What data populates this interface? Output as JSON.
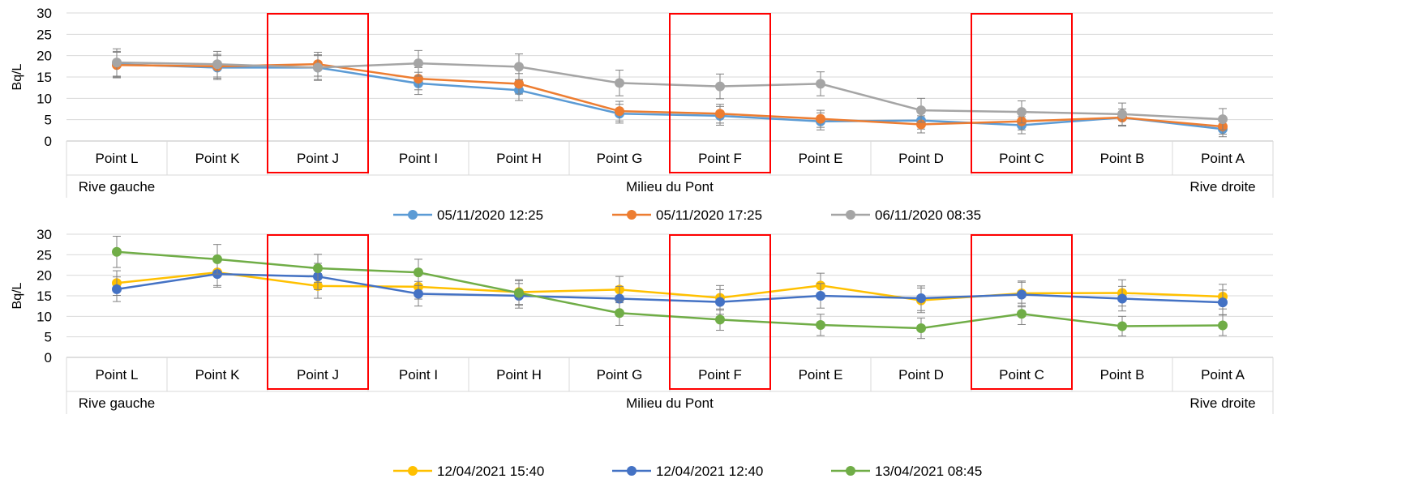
{
  "chart_data": [
    {
      "type": "line",
      "ylabel": "Bq/L",
      "ylim": [
        0,
        30
      ],
      "yticks": [
        0,
        5,
        10,
        15,
        20,
        25,
        30
      ],
      "categories": [
        "Point L",
        "Point K",
        "Point J",
        "Point I",
        "Point H",
        "Point G",
        "Point F",
        "Point E",
        "Point D",
        "Point C",
        "Point B",
        "Point A"
      ],
      "group_labels": [
        {
          "label": "Rive gauche",
          "index": 0
        },
        {
          "label": "Milieu du Pont",
          "index": 5.5
        },
        {
          "label": "Rive droite",
          "index": 11
        }
      ],
      "highlighted_categories": [
        "Point J",
        "Point F",
        "Point C"
      ],
      "highlight_color": "#ff0000",
      "grid": true,
      "legend_position": "bottom",
      "series": [
        {
          "name": "05/11/2020 12:25",
          "color": "#5b9bd5",
          "values": [
            18.0,
            17.2,
            17.2,
            13.5,
            11.9,
            6.4,
            5.9,
            4.6,
            4.8,
            3.7,
            5.5,
            2.8
          ],
          "errors": [
            3.0,
            2.8,
            2.8,
            2.6,
            2.4,
            2.2,
            2.2,
            2.0,
            2.0,
            2.0,
            2.0,
            1.8
          ]
        },
        {
          "name": "05/11/2020 17:25",
          "color": "#ed7d31",
          "values": [
            17.8,
            17.5,
            18.0,
            14.6,
            13.4,
            7.0,
            6.4,
            5.2,
            3.9,
            4.6,
            5.5,
            3.4
          ],
          "errors": [
            3.0,
            2.8,
            2.8,
            2.6,
            2.4,
            2.3,
            2.2,
            2.0,
            2.0,
            2.0,
            2.0,
            1.8
          ]
        },
        {
          "name": "06/11/2020 08:35",
          "color": "#a5a5a5",
          "values": [
            18.4,
            18.0,
            17.2,
            18.2,
            17.4,
            13.6,
            12.8,
            13.4,
            7.2,
            6.8,
            6.3,
            5.1
          ],
          "errors": [
            3.2,
            3.0,
            3.0,
            3.0,
            3.0,
            3.0,
            2.9,
            2.8,
            2.8,
            2.6,
            2.6,
            2.5
          ]
        }
      ]
    },
    {
      "type": "line",
      "ylabel": "Bq/L",
      "ylim": [
        0,
        30
      ],
      "yticks": [
        0,
        5,
        10,
        15,
        20,
        25,
        30
      ],
      "categories": [
        "Point L",
        "Point K",
        "Point J",
        "Point I",
        "Point H",
        "Point G",
        "Point F",
        "Point E",
        "Point D",
        "Point C",
        "Point B",
        "Point A"
      ],
      "group_labels": [
        {
          "label": "Rive gauche",
          "index": 0
        },
        {
          "label": "Milieu du Pont",
          "index": 5.5
        },
        {
          "label": "Rive droite",
          "index": 11
        }
      ],
      "highlighted_categories": [
        "Point J",
        "Point F",
        "Point C"
      ],
      "highlight_color": "#ff0000",
      "grid": true,
      "legend_position": "bottom",
      "series": [
        {
          "name": "12/04/2021 15:40",
          "color": "#ffc000",
          "values": [
            18.1,
            20.7,
            17.4,
            17.2,
            15.9,
            16.5,
            14.5,
            17.5,
            13.9,
            15.6,
            15.7,
            14.8
          ],
          "errors": [
            3.0,
            3.2,
            3.0,
            3.0,
            3.0,
            3.2,
            3.0,
            3.0,
            3.0,
            3.0,
            3.2,
            3.0
          ]
        },
        {
          "name": "12/04/2021 12:40",
          "color": "#4472c4",
          "values": [
            16.6,
            20.3,
            19.7,
            15.5,
            15.0,
            14.3,
            13.5,
            15.0,
            14.4,
            15.3,
            14.3,
            13.4
          ],
          "errors": [
            3.0,
            3.2,
            3.2,
            3.0,
            3.0,
            3.0,
            3.0,
            3.0,
            3.0,
            3.0,
            3.0,
            3.0
          ]
        },
        {
          "name": "13/04/2021 08:45",
          "color": "#70ad47",
          "values": [
            25.7,
            23.9,
            21.7,
            20.7,
            15.7,
            10.8,
            9.2,
            7.9,
            7.1,
            10.6,
            7.6,
            7.8
          ],
          "errors": [
            3.8,
            3.6,
            3.4,
            3.2,
            3.0,
            3.0,
            2.6,
            2.6,
            2.5,
            2.6,
            2.4,
            2.5
          ]
        }
      ]
    }
  ]
}
